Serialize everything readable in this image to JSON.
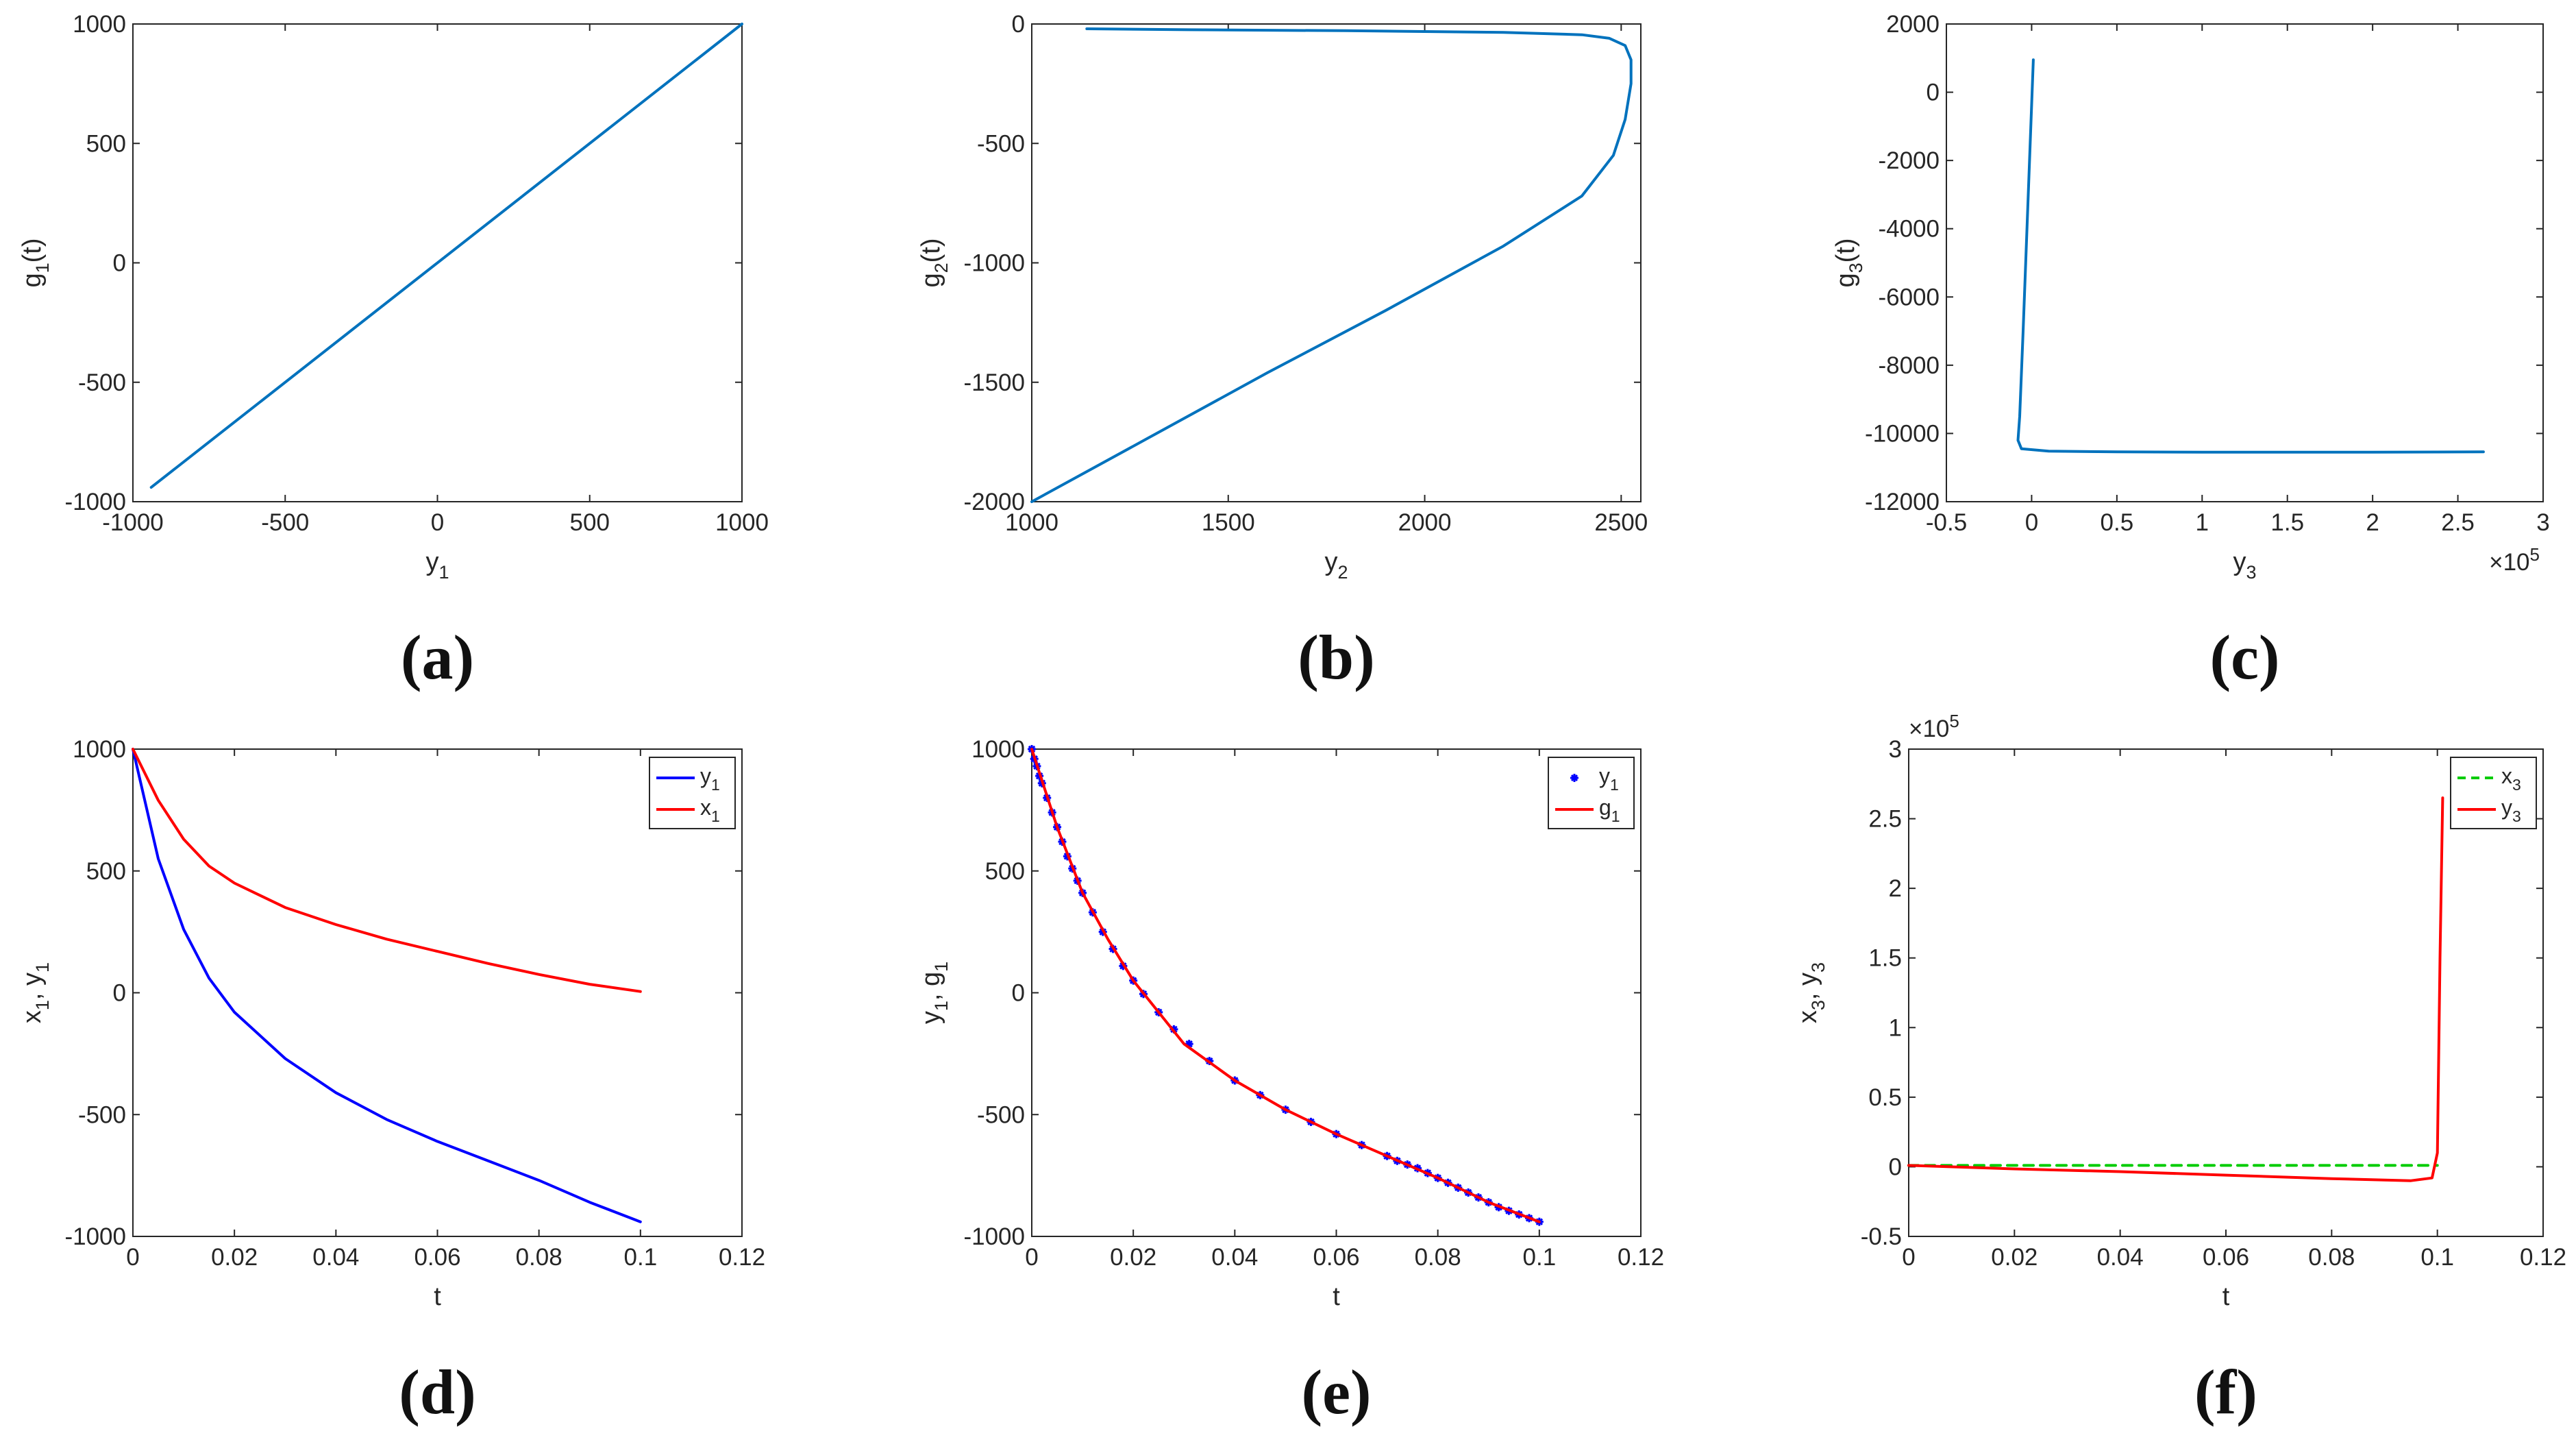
{
  "chart_data": [
    {
      "id": "a",
      "type": "line",
      "panel_label": "(a)",
      "xlabel": "y",
      "xlabel_sub": "1",
      "ylabel": "g",
      "ylabel_sub": "1",
      "ylabel_suffix": "(t)",
      "xlim": [
        -1000,
        1000
      ],
      "ylim": [
        -1000,
        1000
      ],
      "xticks": [
        -1000,
        -500,
        0,
        500,
        1000
      ],
      "xtick_labels": [
        "-1000",
        "-500",
        "0",
        "500",
        "1000"
      ],
      "yticks": [
        -1000,
        -500,
        0,
        500,
        1000
      ],
      "ytick_labels": [
        "-1000",
        "-500",
        "0",
        "500",
        "1000"
      ],
      "x_exponent": "",
      "y_exponent": "",
      "series": [
        {
          "name": "g1 vs y1",
          "color": "#0072BD",
          "style": "solid",
          "x": [
            -940,
            1000
          ],
          "y": [
            -940,
            1000
          ]
        }
      ],
      "legend": null
    },
    {
      "id": "b",
      "type": "line",
      "panel_label": "(b)",
      "xlabel": "y",
      "xlabel_sub": "2",
      "ylabel": "g",
      "ylabel_sub": "2",
      "ylabel_suffix": "(t)",
      "xlim": [
        1000,
        2550
      ],
      "ylim": [
        -2000,
        0
      ],
      "xticks": [
        1000,
        1500,
        2000,
        2500
      ],
      "xtick_labels": [
        "1000",
        "1500",
        "2000",
        "2500"
      ],
      "yticks": [
        -2000,
        -1500,
        -1000,
        -500,
        0
      ],
      "ytick_labels": [
        "-2000",
        "-1500",
        "-1000",
        "-500",
        "0"
      ],
      "x_exponent": "",
      "y_exponent": "",
      "series": [
        {
          "name": "g2 vs y2",
          "color": "#0072BD",
          "style": "solid",
          "x": [
            1000,
            1300,
            1600,
            1900,
            2200,
            2400,
            2480,
            2510,
            2525,
            2525,
            2510,
            2470,
            2400,
            2200,
            1800,
            1400,
            1140
          ],
          "y": [
            -2000,
            -1730,
            -1460,
            -1200,
            -930,
            -720,
            -550,
            -400,
            -250,
            -150,
            -90,
            -60,
            -45,
            -35,
            -28,
            -24,
            -20
          ]
        }
      ],
      "legend": null
    },
    {
      "id": "c",
      "type": "line",
      "panel_label": "(c)",
      "xlabel": "y",
      "xlabel_sub": "3",
      "ylabel": "g",
      "ylabel_sub": "3",
      "ylabel_suffix": "(t)",
      "xlim": [
        -0.5,
        3
      ],
      "ylim": [
        -12000,
        2000
      ],
      "xticks": [
        -0.5,
        0,
        0.5,
        1,
        1.5,
        2,
        2.5,
        3
      ],
      "xtick_labels": [
        "-0.5",
        "0",
        "0.5",
        "1",
        "1.5",
        "2",
        "2.5",
        "3"
      ],
      "yticks": [
        -12000,
        -10000,
        -8000,
        -6000,
        -4000,
        -2000,
        0,
        2000
      ],
      "ytick_labels": [
        "-12000",
        "-10000",
        "-8000",
        "-6000",
        "-4000",
        "-2000",
        "0",
        "2000"
      ],
      "x_exponent": "×10",
      "x_exponent_pow": "5",
      "y_exponent": "",
      "series": [
        {
          "name": "g3 vs y3",
          "color": "#0072BD",
          "style": "solid",
          "x": [
            0.01,
            -0.02,
            -0.05,
            -0.07,
            -0.08,
            -0.06,
            0.1,
            0.5,
            1.0,
            1.5,
            2.0,
            2.65
          ],
          "y": [
            950,
            -3000,
            -7000,
            -9500,
            -10200,
            -10450,
            -10520,
            -10540,
            -10550,
            -10550,
            -10550,
            -10540
          ]
        }
      ],
      "legend": null
    },
    {
      "id": "d",
      "type": "line",
      "panel_label": "(d)",
      "xlabel": "t",
      "xlabel_sub": "",
      "ylabel": "x",
      "ylabel_sub": "1",
      "ylabel_suffix": ", y",
      "ylabel_sub2": "1",
      "xlim": [
        0,
        0.12
      ],
      "ylim": [
        -1000,
        1000
      ],
      "xticks": [
        0,
        0.02,
        0.04,
        0.06,
        0.08,
        0.1,
        0.12
      ],
      "xtick_labels": [
        "0",
        "0.02",
        "0.04",
        "0.06",
        "0.08",
        "0.1",
        "0.12"
      ],
      "yticks": [
        -1000,
        -500,
        0,
        500,
        1000
      ],
      "ytick_labels": [
        "-1000",
        "-500",
        "0",
        "500",
        "1000"
      ],
      "x_exponent": "",
      "y_exponent": "",
      "series": [
        {
          "name": "y",
          "sub": "1",
          "color": "#0000ff",
          "style": "solid",
          "x": [
            0,
            0.005,
            0.01,
            0.015,
            0.02,
            0.03,
            0.04,
            0.05,
            0.06,
            0.07,
            0.08,
            0.09,
            0.1
          ],
          "y": [
            1000,
            550,
            260,
            60,
            -80,
            -270,
            -410,
            -520,
            -610,
            -690,
            -770,
            -860,
            -940
          ]
        },
        {
          "name": "x",
          "sub": "1",
          "color": "#ff0000",
          "style": "solid",
          "x": [
            0,
            0.005,
            0.01,
            0.015,
            0.02,
            0.03,
            0.04,
            0.05,
            0.06,
            0.07,
            0.08,
            0.09,
            0.1
          ],
          "y": [
            1000,
            790,
            630,
            520,
            450,
            350,
            280,
            220,
            170,
            120,
            75,
            35,
            5
          ]
        }
      ],
      "legend": "top-right"
    },
    {
      "id": "e",
      "type": "line",
      "panel_label": "(e)",
      "xlabel": "t",
      "xlabel_sub": "",
      "ylabel": "y",
      "ylabel_sub": "1",
      "ylabel_suffix": ", g",
      "ylabel_sub2": "1",
      "xlim": [
        0,
        0.12
      ],
      "ylim": [
        -1000,
        1000
      ],
      "xticks": [
        0,
        0.02,
        0.04,
        0.06,
        0.08,
        0.1,
        0.12
      ],
      "xtick_labels": [
        "0",
        "0.02",
        "0.04",
        "0.06",
        "0.08",
        "0.1",
        "0.12"
      ],
      "yticks": [
        -1000,
        -500,
        0,
        500,
        1000
      ],
      "ytick_labels": [
        "-1000",
        "-500",
        "0",
        "500",
        "1000"
      ],
      "x_exponent": "",
      "y_exponent": "",
      "series": [
        {
          "name": "y",
          "sub": "1",
          "color": "#0000ff",
          "style": "markers",
          "x": [
            0,
            0.0005,
            0.001,
            0.0015,
            0.002,
            0.003,
            0.004,
            0.005,
            0.006,
            0.007,
            0.008,
            0.009,
            0.01,
            0.012,
            0.014,
            0.016,
            0.018,
            0.02,
            0.022,
            0.025,
            0.028,
            0.031,
            0.035,
            0.04,
            0.045,
            0.05,
            0.055,
            0.06,
            0.065,
            0.07,
            0.072,
            0.074,
            0.076,
            0.078,
            0.08,
            0.082,
            0.084,
            0.086,
            0.088,
            0.09,
            0.092,
            0.094,
            0.096,
            0.098,
            0.1
          ],
          "y": [
            1000,
            960,
            930,
            890,
            860,
            800,
            740,
            680,
            620,
            560,
            510,
            460,
            410,
            330,
            250,
            180,
            110,
            50,
            -5,
            -80,
            -150,
            -210,
            -280,
            -360,
            -420,
            -480,
            -530,
            -580,
            -625,
            -670,
            -690,
            -705,
            -720,
            -740,
            -760,
            -780,
            -800,
            -820,
            -840,
            -860,
            -880,
            -895,
            -910,
            -925,
            -940
          ]
        },
        {
          "name": "g",
          "sub": "1",
          "color": "#ff0000",
          "style": "solid",
          "x": [
            0,
            0.005,
            0.01,
            0.015,
            0.02,
            0.03,
            0.04,
            0.05,
            0.06,
            0.07,
            0.08,
            0.09,
            0.1
          ],
          "y": [
            1000,
            680,
            410,
            220,
            50,
            -210,
            -360,
            -480,
            -580,
            -670,
            -760,
            -860,
            -940
          ]
        }
      ],
      "legend": "top-right"
    },
    {
      "id": "f",
      "type": "line",
      "panel_label": "(f)",
      "xlabel": "t",
      "xlabel_sub": "",
      "ylabel": "x",
      "ylabel_sub": "3",
      "ylabel_suffix": ", y",
      "ylabel_sub2": "3",
      "xlim": [
        0,
        0.12
      ],
      "ylim": [
        -0.5,
        3
      ],
      "xticks": [
        0,
        0.02,
        0.04,
        0.06,
        0.08,
        0.1,
        0.12
      ],
      "xtick_labels": [
        "0",
        "0.02",
        "0.04",
        "0.06",
        "0.08",
        "0.1",
        "0.12"
      ],
      "yticks": [
        -0.5,
        0,
        0.5,
        1,
        1.5,
        2,
        2.5,
        3
      ],
      "ytick_labels": [
        "-0.5",
        "0",
        "0.5",
        "1",
        "1.5",
        "2",
        "2.5",
        "3"
      ],
      "x_exponent": "",
      "y_exponent": "×10",
      "y_exponent_pow": "5",
      "series": [
        {
          "name": "x",
          "sub": "3",
          "color": "#00cc00",
          "style": "dashed",
          "x": [
            0,
            0.1
          ],
          "y": [
            0.01,
            0.01
          ]
        },
        {
          "name": "y",
          "sub": "3",
          "color": "#ff0000",
          "style": "solid",
          "x": [
            0,
            0.02,
            0.04,
            0.06,
            0.08,
            0.095,
            0.099,
            0.1,
            0.1005,
            0.101
          ],
          "y": [
            0.01,
            -0.015,
            -0.035,
            -0.06,
            -0.085,
            -0.1,
            -0.08,
            0.1,
            1.5,
            2.65
          ]
        }
      ],
      "legend": "top-right"
    }
  ]
}
